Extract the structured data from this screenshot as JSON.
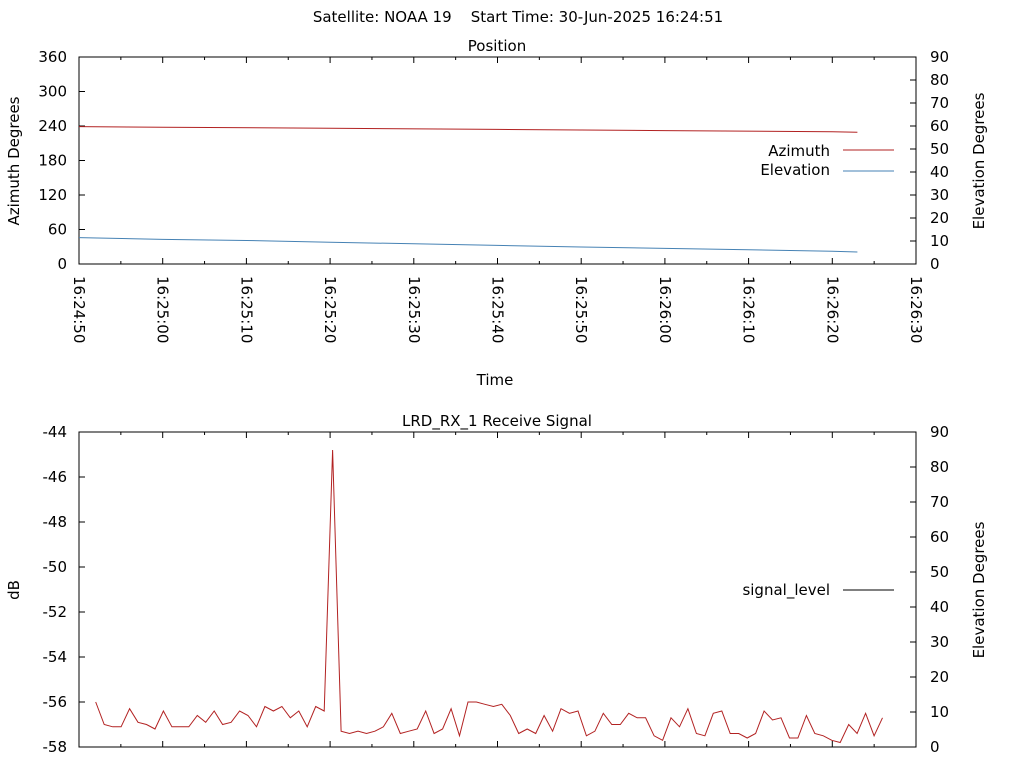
{
  "header": {
    "text": "Satellite: NOAA 19    Start Time: 30-Jun-2025 16:24:51"
  },
  "colors": {
    "azimuth": "#b22222",
    "elevation": "#4682b4",
    "signal": "#b22222",
    "signal_legend": "#000000",
    "axis": "#000000"
  },
  "chart_data": [
    {
      "type": "line",
      "title": "Position",
      "xlabel": "Time",
      "ylabel": "Azimuth Degrees",
      "y2label": "Elevation Degrees",
      "x_ticks": [
        "16:24:50",
        "16:25:00",
        "16:25:10",
        "16:25:20",
        "16:25:30",
        "16:25:40",
        "16:25:50",
        "16:26:00",
        "16:26:10",
        "16:26:20",
        "16:26:30"
      ],
      "x_range": [
        "16:24:50",
        "16:26:30"
      ],
      "ylim": [
        0,
        360
      ],
      "y_ticks": [
        "0",
        "60",
        "120",
        "180",
        "240",
        "300",
        "360"
      ],
      "y2lim": [
        0,
        90
      ],
      "y2_ticks": [
        "0",
        "10",
        "20",
        "30",
        "40",
        "50",
        "60",
        "70",
        "80",
        "90"
      ],
      "legend": "right",
      "grid": false,
      "series": [
        {
          "name": "Azimuth",
          "axis": "y",
          "x": [
            "16:24:50",
            "16:25:00",
            "16:25:20",
            "16:25:40",
            "16:26:00",
            "16:26:20",
            "16:26:23"
          ],
          "values": [
            239,
            238,
            236,
            234,
            232,
            230,
            229
          ]
        },
        {
          "name": "Elevation",
          "axis": "y2",
          "x": [
            "16:24:50",
            "16:25:00",
            "16:25:10",
            "16:25:20",
            "16:25:30",
            "16:25:40",
            "16:25:50",
            "16:26:00",
            "16:26:10",
            "16:26:20",
            "16:26:23"
          ],
          "values": [
            11.5,
            10.7,
            10.2,
            9.5,
            8.8,
            8.1,
            7.4,
            6.8,
            6.2,
            5.5,
            5.2
          ]
        }
      ]
    },
    {
      "type": "line",
      "title": "LRD_RX_1 Receive Signal",
      "xlabel": "",
      "ylabel": "dB",
      "y2label": "Elevation Degrees",
      "x_range": [
        "16:24:50",
        "16:26:30"
      ],
      "ylim": [
        -58,
        -44
      ],
      "y_ticks": [
        "-58",
        "-56",
        "-54",
        "-52",
        "-50",
        "-48",
        "-46",
        "-44"
      ],
      "y2lim": [
        0,
        90
      ],
      "y2_ticks": [
        "0",
        "10",
        "20",
        "30",
        "40",
        "50",
        "60",
        "70",
        "80",
        "90"
      ],
      "legend": "right",
      "grid": false,
      "series": [
        {
          "name": "signal_level",
          "axis": "y",
          "values": [
            -56.0,
            -57.0,
            -57.1,
            -57.1,
            -56.3,
            -56.9,
            -57.0,
            -57.2,
            -56.4,
            -57.1,
            -57.1,
            -57.1,
            -56.6,
            -56.9,
            -56.4,
            -57.0,
            -56.9,
            -56.4,
            -56.6,
            -57.1,
            -56.2,
            -56.4,
            -56.2,
            -56.7,
            -56.4,
            -57.1,
            -56.2,
            -56.4,
            -44.8,
            -57.3,
            -57.4,
            -57.3,
            -57.4,
            -57.3,
            -57.1,
            -56.5,
            -57.4,
            -57.3,
            -57.2,
            -56.4,
            -57.4,
            -57.2,
            -56.3,
            -57.5,
            -56.0,
            -56.0,
            -56.1,
            -56.2,
            -56.1,
            -56.6,
            -57.4,
            -57.2,
            -57.4,
            -56.6,
            -57.3,
            -56.3,
            -56.5,
            -56.4,
            -57.5,
            -57.3,
            -56.5,
            -57.0,
            -57.0,
            -56.5,
            -56.7,
            -56.7,
            -57.5,
            -57.7,
            -56.7,
            -57.1,
            -56.3,
            -57.4,
            -57.5,
            -56.5,
            -56.4,
            -57.4,
            -57.4,
            -57.6,
            -57.4,
            -56.4,
            -56.8,
            -56.7,
            -57.6,
            -57.6,
            -56.6,
            -57.4,
            -57.5,
            -57.7,
            -57.8,
            -57.0,
            -57.4,
            -56.5,
            -57.5,
            -56.7
          ]
        }
      ]
    }
  ]
}
